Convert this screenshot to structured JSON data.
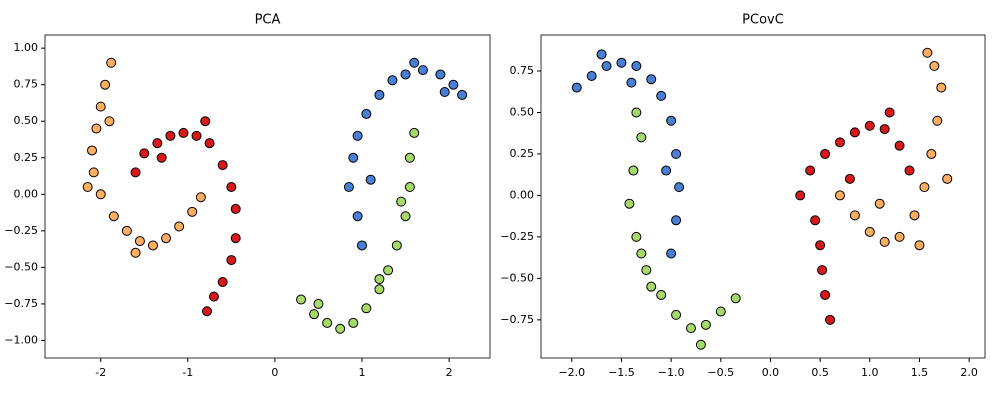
{
  "chart_data": [
    {
      "type": "scatter",
      "title": "PCA",
      "xlim": [
        -2.64,
        2.47
      ],
      "ylim": [
        -1.12,
        1.09
      ],
      "xticks": [
        -2,
        -1,
        0,
        1,
        2
      ],
      "yticks": [
        {
          "value": -1,
          "label": "−1.00"
        },
        {
          "value": -0.75,
          "label": "−0.75"
        },
        {
          "value": -0.5,
          "label": "−0.50"
        },
        {
          "value": -0.25,
          "label": "−0.25"
        },
        {
          "value": 0,
          "label": "0.00"
        },
        0.25,
        {
          "value": 0.5,
          "label": "0.50"
        },
        0.75,
        {
          "value": 1,
          "label": "1.00"
        }
      ],
      "series": [
        {
          "color": "#fdae61",
          "x": [
            -1.88,
            -1.95,
            -2.0,
            -2.05,
            -2.1,
            -2.08,
            -2.0,
            -1.85,
            -1.7,
            -1.55,
            -1.4,
            -1.25,
            -1.1,
            -0.95,
            -0.85,
            -1.9,
            -2.15,
            -1.6
          ],
          "values": [
            0.9,
            0.75,
            0.6,
            0.45,
            0.3,
            0.15,
            0.0,
            -0.15,
            -0.25,
            -0.32,
            -0.35,
            -0.3,
            -0.22,
            -0.12,
            -0.02,
            0.5,
            0.05,
            -0.4
          ]
        },
        {
          "color": "#d7191c",
          "x": [
            -1.6,
            -1.5,
            -1.35,
            -1.2,
            -1.05,
            -0.9,
            -0.75,
            -0.6,
            -0.5,
            -0.45,
            -0.45,
            -0.5,
            -0.6,
            -0.7,
            -0.78,
            -1.3,
            -0.8
          ],
          "values": [
            0.15,
            0.28,
            0.35,
            0.4,
            0.42,
            0.4,
            0.35,
            0.2,
            0.05,
            -0.1,
            -0.3,
            -0.45,
            -0.6,
            -0.7,
            -0.8,
            0.25,
            0.5
          ]
        },
        {
          "color": "#4a7fd6",
          "x": [
            0.85,
            0.9,
            0.95,
            1.05,
            1.2,
            1.35,
            1.5,
            1.7,
            1.9,
            2.05,
            2.15,
            0.95,
            1.0,
            1.1,
            1.6,
            1.95
          ],
          "values": [
            0.05,
            0.25,
            0.4,
            0.55,
            0.68,
            0.78,
            0.82,
            0.85,
            0.82,
            0.75,
            0.68,
            -0.15,
            -0.35,
            0.1,
            0.9,
            0.7
          ]
        },
        {
          "color": "#a6d96a",
          "x": [
            0.3,
            0.45,
            0.6,
            0.75,
            0.9,
            1.05,
            1.2,
            1.3,
            1.4,
            1.5,
            1.55,
            1.55,
            1.6,
            0.5,
            1.45,
            1.2
          ],
          "values": [
            -0.72,
            -0.82,
            -0.88,
            -0.92,
            -0.88,
            -0.78,
            -0.65,
            -0.52,
            -0.35,
            -0.15,
            0.05,
            0.25,
            0.42,
            -0.75,
            -0.05,
            -0.58
          ]
        }
      ]
    },
    {
      "type": "scatter",
      "title": "PCovC",
      "xlim": [
        -2.31,
        2.16
      ],
      "ylim": [
        -0.98,
        0.967
      ],
      "xticks": [
        {
          "value": -2,
          "label": "−2.0"
        },
        {
          "value": -1.5,
          "label": "−1.5"
        },
        {
          "value": -1,
          "label": "−1.0"
        },
        {
          "value": -0.5,
          "label": "−0.5"
        },
        {
          "value": 0,
          "label": "0.0"
        },
        0.5,
        {
          "value": 1,
          "label": "1.0"
        },
        1.5,
        {
          "value": 2,
          "label": "2.0"
        }
      ],
      "yticks": [
        {
          "value": -0.75,
          "label": "−0.75"
        },
        {
          "value": -0.5,
          "label": "−0.50"
        },
        {
          "value": -0.25,
          "label": "−0.25"
        },
        {
          "value": 0,
          "label": "0.00"
        },
        0.25,
        {
          "value": 0.5,
          "label": "0.50"
        },
        0.75
      ],
      "series": [
        {
          "color": "#4a7fd6",
          "x": [
            -1.95,
            -1.8,
            -1.65,
            -1.5,
            -1.35,
            -1.2,
            -1.1,
            -1.0,
            -0.95,
            -0.92,
            -0.95,
            -1.0,
            -1.7,
            -1.4,
            -1.05
          ],
          "values": [
            0.65,
            0.72,
            0.78,
            0.8,
            0.78,
            0.7,
            0.6,
            0.45,
            0.25,
            0.05,
            -0.15,
            -0.35,
            0.85,
            0.68,
            0.15
          ]
        },
        {
          "color": "#a6d96a",
          "x": [
            -1.35,
            -1.3,
            -1.38,
            -1.42,
            -1.35,
            -1.25,
            -1.1,
            -0.95,
            -0.8,
            -0.65,
            -0.5,
            -0.35,
            -1.3,
            -1.2,
            -0.7
          ],
          "values": [
            0.5,
            0.35,
            0.15,
            -0.05,
            -0.25,
            -0.45,
            -0.6,
            -0.72,
            -0.8,
            -0.78,
            -0.7,
            -0.62,
            -0.35,
            -0.55,
            -0.9
          ]
        },
        {
          "color": "#d7191c",
          "x": [
            0.3,
            0.4,
            0.55,
            0.7,
            0.85,
            1.0,
            1.15,
            1.3,
            1.4,
            0.45,
            0.5,
            0.52,
            0.55,
            0.6,
            1.2,
            0.8
          ],
          "values": [
            0.0,
            0.15,
            0.25,
            0.32,
            0.38,
            0.42,
            0.4,
            0.3,
            0.15,
            -0.15,
            -0.3,
            -0.45,
            -0.6,
            -0.75,
            0.5,
            0.1
          ]
        },
        {
          "color": "#fdae61",
          "x": [
            0.7,
            0.85,
            1.0,
            1.15,
            1.3,
            1.45,
            1.55,
            1.62,
            1.68,
            1.72,
            1.65,
            1.58,
            1.78,
            1.1,
            1.5
          ],
          "values": [
            0.0,
            -0.12,
            -0.22,
            -0.28,
            -0.25,
            -0.12,
            0.05,
            0.25,
            0.45,
            0.65,
            0.78,
            0.86,
            0.1,
            -0.05,
            -0.3
          ]
        }
      ]
    }
  ]
}
